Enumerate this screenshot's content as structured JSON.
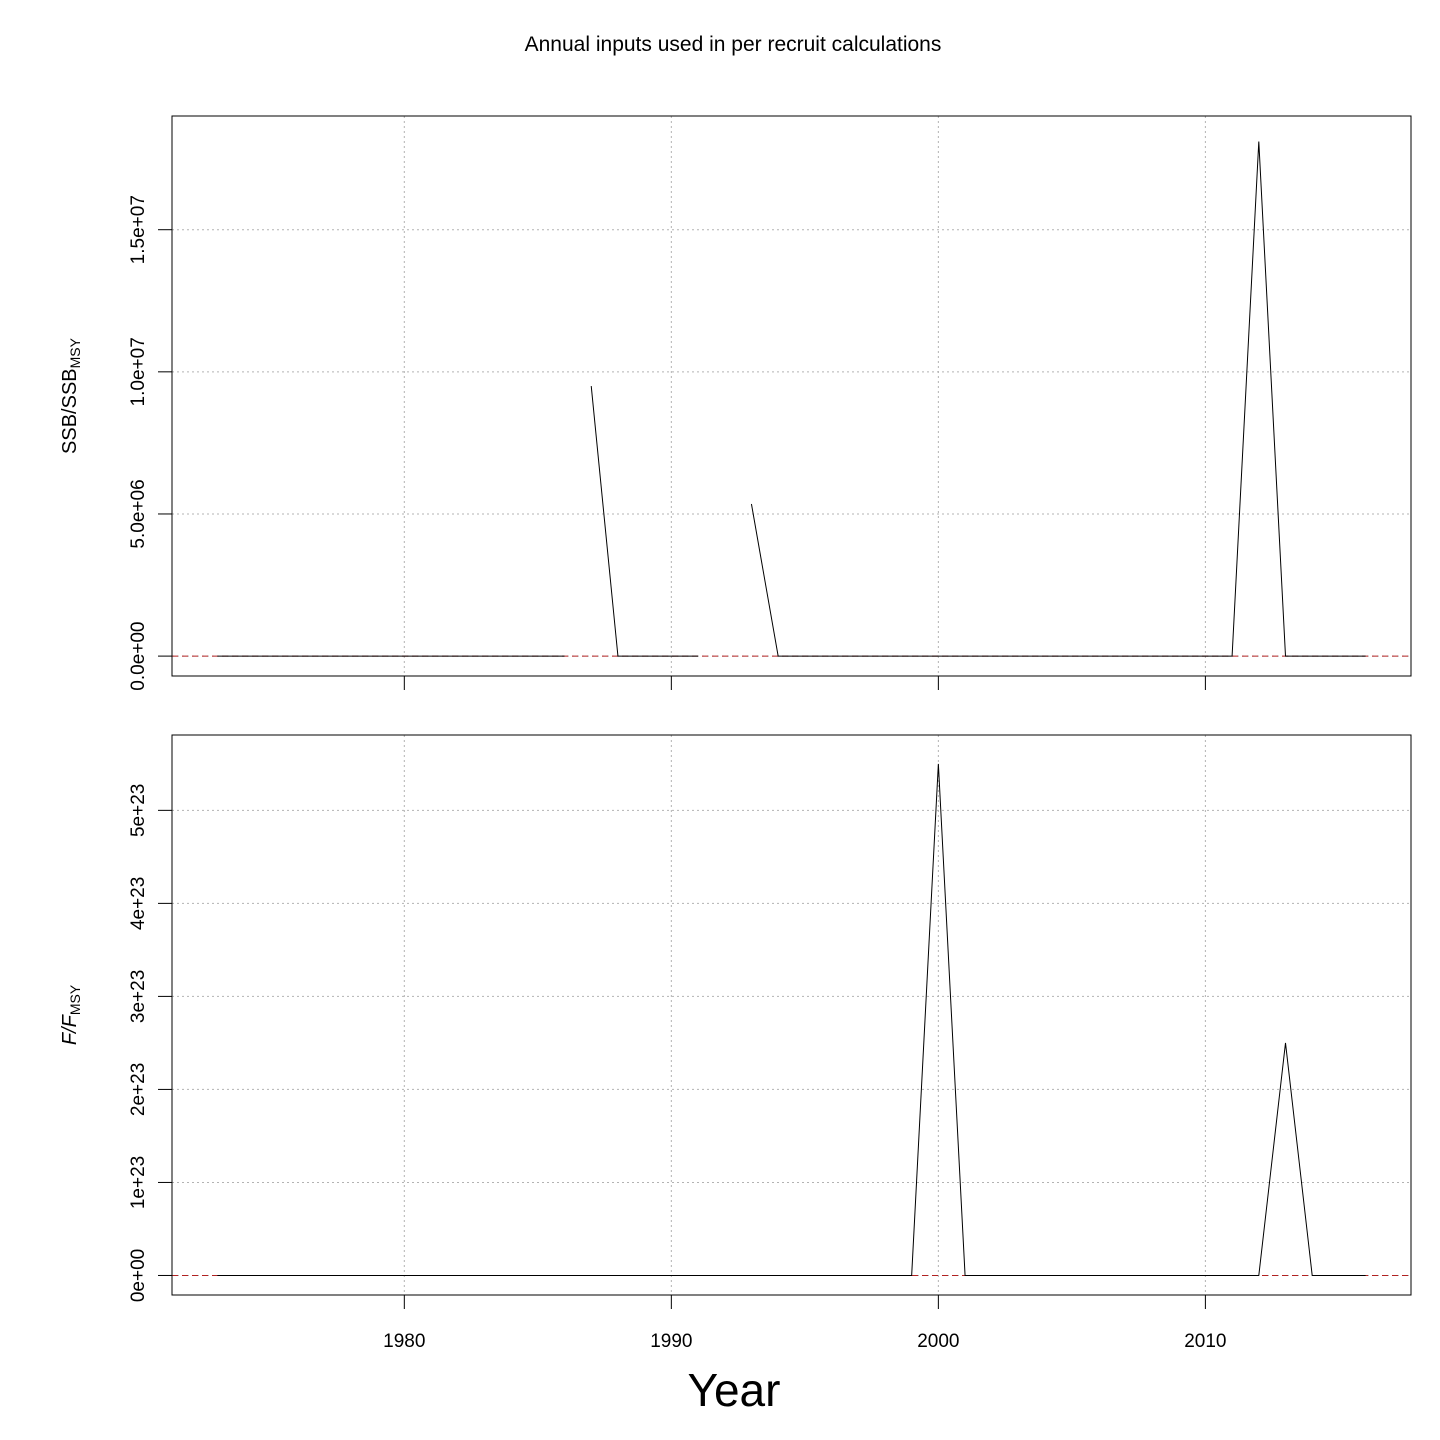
{
  "figure": {
    "title": "Annual inputs used in per recruit calculations",
    "xlabel": "Year"
  },
  "chart_data": [
    {
      "type": "line",
      "panel": "top",
      "ylabel_main": "SSB/SSB",
      "ylabel_sub": "MSY",
      "ylabel_italic": false,
      "xlim": [
        1971.3,
        2017.7
      ],
      "ylim": [
        -700000,
        19000000
      ],
      "x_ticks": [
        1980,
        1990,
        2000,
        2010
      ],
      "show_x_tick_labels": false,
      "y_ticks": [
        0,
        5000000,
        10000000,
        15000000
      ],
      "y_tick_labels": [
        "0.0e+00",
        "5.0e+06",
        "1.0e+07",
        "1.5e+07"
      ],
      "grid": true,
      "reference_line": {
        "y": 0,
        "color": "#b22222",
        "style": "dashed"
      },
      "series": [
        {
          "color": "#000000",
          "x": [
            1973,
            1974,
            1975,
            1976,
            1977,
            1978,
            1979,
            1980,
            1981,
            1982,
            1983,
            1984,
            1985,
            1986,
            1987,
            1988,
            1989,
            1990,
            1991,
            1992,
            1993,
            1994,
            1995,
            1996,
            1997,
            1998,
            1999,
            2000,
            2001,
            2002,
            2003,
            2004,
            2005,
            2006,
            2007,
            2008,
            2009,
            2010,
            2011,
            2012,
            2013,
            2014,
            2015,
            2016
          ],
          "y": [
            null,
            null,
            null,
            null,
            null,
            null,
            null,
            null,
            null,
            null,
            null,
            null,
            null,
            null,
            9500000,
            0,
            0,
            0,
            0,
            null,
            5350000,
            0,
            0,
            0,
            0,
            0,
            0,
            0,
            0,
            0,
            0,
            0,
            0,
            0,
            0,
            0,
            0,
            0,
            0,
            18100000,
            0,
            0,
            0,
            0
          ]
        },
        {
          "color": "#000000",
          "x": [
            1973,
            1986
          ],
          "y": [
            0,
            0
          ]
        }
      ]
    },
    {
      "type": "line",
      "panel": "bottom",
      "ylabel_main": "F/F",
      "ylabel_sub": "MSY",
      "ylabel_italic": true,
      "xlim": [
        1971.3,
        2017.7
      ],
      "ylim": [
        -2.1e+22,
        5.81e+23
      ],
      "x_ticks": [
        1980,
        1990,
        2000,
        2010
      ],
      "x_tick_labels": [
        "1980",
        "1990",
        "2000",
        "2010"
      ],
      "show_x_tick_labels": true,
      "y_ticks": [
        0,
        1e+23,
        2e+23,
        3e+23,
        4e+23,
        5e+23
      ],
      "y_tick_labels": [
        "0e+00",
        "1e+23",
        "2e+23",
        "3e+23",
        "4e+23",
        "5e+23"
      ],
      "grid": true,
      "reference_line": {
        "y": 0,
        "color": "#b22222",
        "style": "dashed"
      },
      "series": [
        {
          "color": "#000000",
          "x": [
            1973,
            1974,
            1975,
            1976,
            1977,
            1978,
            1979,
            1980,
            1981,
            1982,
            1983,
            1984,
            1985,
            1986,
            1987,
            1988,
            1989,
            1990,
            1991,
            1992,
            1993,
            1994,
            1995,
            1996,
            1997,
            1998,
            1999,
            2000,
            2001,
            2002,
            2003,
            2004,
            2005,
            2006,
            2007,
            2008,
            2009,
            2010,
            2011,
            2012,
            2013,
            2014,
            2015,
            2016
          ],
          "y": [
            0,
            0,
            0,
            0,
            0,
            0,
            0,
            0,
            0,
            0,
            0,
            0,
            0,
            0,
            0,
            0,
            0,
            0,
            0,
            0,
            0,
            0,
            0,
            0,
            0,
            0,
            0,
            5.5e+23,
            0,
            0,
            0,
            0,
            0,
            0,
            0,
            0,
            0,
            0,
            0,
            0,
            2.5e+23,
            0,
            0,
            0
          ]
        }
      ]
    }
  ]
}
